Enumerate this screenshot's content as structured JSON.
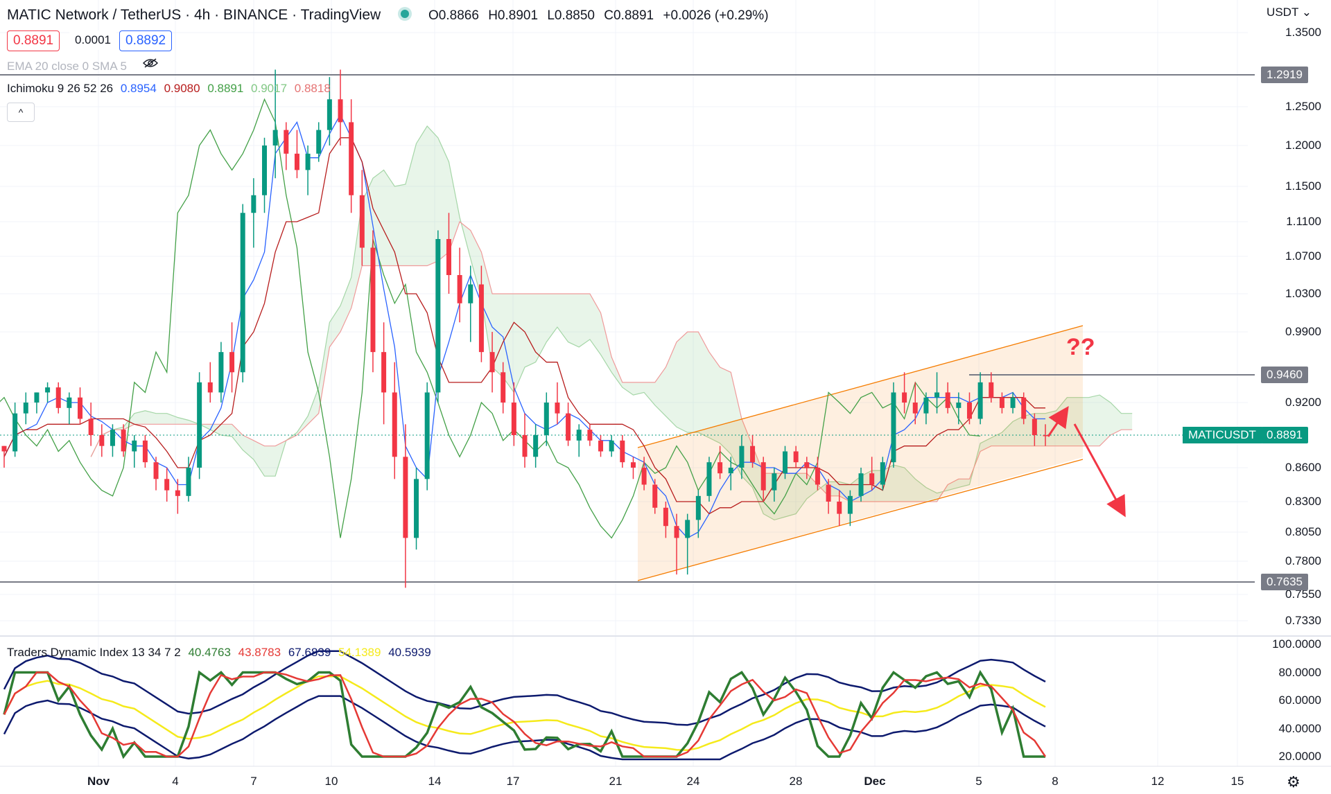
{
  "header": {
    "title": "MATIC Network / TetherUS · 4h · BINANCE · TradingView",
    "ohlc": {
      "o": "O0.8866",
      "h": "H0.8901",
      "l": "L0.8850",
      "c": "C0.8891",
      "change": "+0.0026 (+0.29%)"
    },
    "bid": "0.8891",
    "spread": "0.0001",
    "ask": "0.8892",
    "ema_label": "EMA 20 close 0 SMA 5",
    "ichimoku_label": "Ichimoku 9 26 52 26",
    "ichimoku_values": [
      "0.8954",
      "0.9080",
      "0.8891",
      "0.9017",
      "0.8818"
    ],
    "collapse_glyph": "^"
  },
  "colors": {
    "up": "#089981",
    "down": "#f23645",
    "tenkan": "#2962ff",
    "kijun": "#b71c1c",
    "chikou": "#43a047",
    "span_a": "#a5d6a7",
    "span_b": "#ef9a9a",
    "channel": "#f57c00",
    "tdi_green": "#2e7d32",
    "tdi_red": "#e53935",
    "tdi_yellow": "#f5ea1b",
    "tdi_navy": "#0d1a6e"
  },
  "price_axis": {
    "currency": "USDT",
    "ticks": [
      "1.3500",
      "1.2500",
      "1.2000",
      "1.1500",
      "1.1100",
      "1.0700",
      "1.0300",
      "0.9900",
      "0.9200",
      "0.8600",
      "0.8300",
      "0.8050",
      "0.7800",
      "0.7550",
      "0.7330"
    ],
    "level_tags": [
      "1.2919",
      "0.9460",
      "0.7635"
    ],
    "symbol_tag": "MATICUSDT",
    "last_price": "0.8891",
    "question_marks": "??"
  },
  "time_axis": {
    "labels": [
      "Nov",
      "4",
      "7",
      "10",
      "14",
      "17",
      "21",
      "24",
      "28",
      "Dec",
      "5",
      "8",
      "12",
      "15"
    ]
  },
  "tdi": {
    "label": "Traders Dynamic Index 13 34 7 2",
    "values": [
      "40.4763",
      "43.8783",
      "67.6839",
      "54.1389",
      "40.5939"
    ],
    "ticks": [
      "100.0000",
      "80.0000",
      "60.0000",
      "40.0000",
      "20.0000"
    ]
  },
  "chart_data": {
    "type": "candlestick",
    "symbol": "MATICUSDT",
    "timeframe": "4h",
    "candles": [
      [
        0.88,
        0.88,
        0.86,
        0.875
      ],
      [
        0.875,
        0.92,
        0.87,
        0.91
      ],
      [
        0.91,
        0.93,
        0.9,
        0.92
      ],
      [
        0.92,
        0.93,
        0.91,
        0.93
      ],
      [
        0.93,
        0.94,
        0.92,
        0.935
      ],
      [
        0.935,
        0.94,
        0.91,
        0.915
      ],
      [
        0.915,
        0.93,
        0.9,
        0.925
      ],
      [
        0.925,
        0.935,
        0.9,
        0.905
      ],
      [
        0.905,
        0.92,
        0.88,
        0.89
      ],
      [
        0.89,
        0.9,
        0.87,
        0.88
      ],
      [
        0.88,
        0.9,
        0.87,
        0.895
      ],
      [
        0.895,
        0.9,
        0.87,
        0.875
      ],
      [
        0.875,
        0.89,
        0.86,
        0.885
      ],
      [
        0.885,
        0.89,
        0.86,
        0.865
      ],
      [
        0.865,
        0.87,
        0.84,
        0.85
      ],
      [
        0.85,
        0.86,
        0.83,
        0.84
      ],
      [
        0.84,
        0.85,
        0.82,
        0.835
      ],
      [
        0.835,
        0.87,
        0.83,
        0.86
      ],
      [
        0.86,
        0.95,
        0.85,
        0.94
      ],
      [
        0.94,
        0.96,
        0.92,
        0.93
      ],
      [
        0.93,
        0.98,
        0.92,
        0.97
      ],
      [
        0.97,
        1.0,
        0.93,
        0.95
      ],
      [
        0.95,
        1.13,
        0.94,
        1.12
      ],
      [
        1.12,
        1.16,
        1.08,
        1.14
      ],
      [
        1.14,
        1.21,
        1.12,
        1.2
      ],
      [
        1.2,
        1.3,
        1.16,
        1.22
      ],
      [
        1.22,
        1.23,
        1.17,
        1.19
      ],
      [
        1.19,
        1.22,
        1.16,
        1.17
      ],
      [
        1.17,
        1.2,
        1.14,
        1.19
      ],
      [
        1.19,
        1.23,
        1.18,
        1.22
      ],
      [
        1.22,
        1.29,
        1.2,
        1.26
      ],
      [
        1.26,
        1.3,
        1.2,
        1.23
      ],
      [
        1.23,
        1.26,
        1.12,
        1.14
      ],
      [
        1.14,
        1.17,
        1.06,
        1.08
      ],
      [
        1.08,
        1.1,
        0.95,
        0.97
      ],
      [
        0.97,
        1.0,
        0.9,
        0.93
      ],
      [
        0.93,
        0.96,
        0.85,
        0.87
      ],
      [
        0.87,
        0.9,
        0.76,
        0.8
      ],
      [
        0.8,
        0.86,
        0.79,
        0.85
      ],
      [
        0.85,
        0.94,
        0.84,
        0.93
      ],
      [
        0.93,
        1.1,
        0.92,
        1.09
      ],
      [
        1.09,
        1.12,
        1.03,
        1.05
      ],
      [
        1.05,
        1.08,
        1.0,
        1.02
      ],
      [
        1.02,
        1.06,
        0.98,
        1.04
      ],
      [
        1.04,
        1.06,
        0.96,
        0.97
      ],
      [
        0.97,
        0.99,
        0.93,
        0.95
      ],
      [
        0.95,
        0.96,
        0.91,
        0.92
      ],
      [
        0.92,
        0.94,
        0.88,
        0.89
      ],
      [
        0.89,
        0.91,
        0.86,
        0.87
      ],
      [
        0.87,
        0.9,
        0.86,
        0.89
      ],
      [
        0.89,
        0.93,
        0.88,
        0.92
      ],
      [
        0.92,
        0.94,
        0.9,
        0.91
      ],
      [
        0.91,
        0.92,
        0.88,
        0.885
      ],
      [
        0.885,
        0.9,
        0.87,
        0.895
      ],
      [
        0.895,
        0.9,
        0.88,
        0.885
      ],
      [
        0.885,
        0.89,
        0.87,
        0.875
      ],
      [
        0.875,
        0.89,
        0.87,
        0.885
      ],
      [
        0.885,
        0.89,
        0.86,
        0.865
      ],
      [
        0.865,
        0.87,
        0.85,
        0.86
      ],
      [
        0.86,
        0.87,
        0.84,
        0.845
      ],
      [
        0.845,
        0.85,
        0.82,
        0.825
      ],
      [
        0.825,
        0.83,
        0.8,
        0.81
      ],
      [
        0.81,
        0.82,
        0.77,
        0.8
      ],
      [
        0.8,
        0.82,
        0.77,
        0.815
      ],
      [
        0.815,
        0.84,
        0.8,
        0.835
      ],
      [
        0.835,
        0.87,
        0.83,
        0.865
      ],
      [
        0.865,
        0.88,
        0.85,
        0.855
      ],
      [
        0.855,
        0.87,
        0.84,
        0.86
      ],
      [
        0.86,
        0.89,
        0.85,
        0.88
      ],
      [
        0.88,
        0.89,
        0.86,
        0.865
      ],
      [
        0.865,
        0.87,
        0.83,
        0.84
      ],
      [
        0.84,
        0.86,
        0.83,
        0.855
      ],
      [
        0.855,
        0.88,
        0.85,
        0.875
      ],
      [
        0.875,
        0.88,
        0.86,
        0.865
      ],
      [
        0.865,
        0.87,
        0.85,
        0.86
      ],
      [
        0.86,
        0.87,
        0.84,
        0.845
      ],
      [
        0.845,
        0.85,
        0.82,
        0.83
      ],
      [
        0.83,
        0.84,
        0.81,
        0.82
      ],
      [
        0.82,
        0.84,
        0.81,
        0.835
      ],
      [
        0.835,
        0.86,
        0.83,
        0.855
      ],
      [
        0.855,
        0.87,
        0.84,
        0.845
      ],
      [
        0.845,
        0.87,
        0.84,
        0.865
      ],
      [
        0.865,
        0.94,
        0.86,
        0.93
      ],
      [
        0.93,
        0.95,
        0.91,
        0.92
      ],
      [
        0.92,
        0.94,
        0.9,
        0.91
      ],
      [
        0.91,
        0.93,
        0.9,
        0.925
      ],
      [
        0.925,
        0.95,
        0.91,
        0.93
      ],
      [
        0.93,
        0.94,
        0.91,
        0.915
      ],
      [
        0.915,
        0.93,
        0.9,
        0.92
      ],
      [
        0.92,
        0.93,
        0.9,
        0.905
      ],
      [
        0.905,
        0.95,
        0.9,
        0.94
      ],
      [
        0.94,
        0.95,
        0.92,
        0.925
      ],
      [
        0.925,
        0.93,
        0.91,
        0.915
      ],
      [
        0.915,
        0.93,
        0.91,
        0.925
      ],
      [
        0.925,
        0.93,
        0.9,
        0.905
      ],
      [
        0.905,
        0.91,
        0.88,
        0.89
      ],
      [
        0.89,
        0.9,
        0.88,
        0.8891
      ]
    ],
    "levels": [
      1.2919,
      0.946,
      0.7635
    ],
    "ylim": [
      0.73,
      1.36
    ]
  }
}
